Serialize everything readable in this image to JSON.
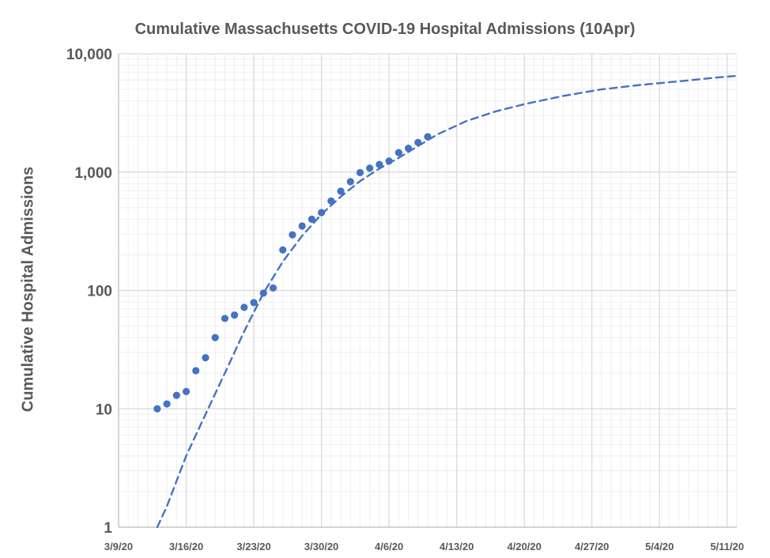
{
  "chart_data": {
    "type": "scatter",
    "title": "Cumulative Massachusetts COVID-19 Hospital Admissions (10Apr)",
    "xlabel": "",
    "ylabel": "Cumulative Hospital Admissions",
    "y_scale": "log",
    "ylim": [
      1,
      10000
    ],
    "xlim": [
      "2020-03-09",
      "2020-05-12"
    ],
    "y_tick_labels": [
      "1",
      "10",
      "100",
      "1,000",
      "10,000"
    ],
    "x_tick_labels": [
      "3/9/20",
      "3/16/20",
      "3/23/20",
      "3/30/20",
      "4/6/20",
      "4/13/20",
      "4/20/20",
      "4/27/20",
      "5/4/20",
      "5/11/20"
    ],
    "grid": true,
    "colors": {
      "series": "#4472c4",
      "grid_major": "#d9d9d9",
      "grid_minor": "#efefef",
      "text": "#595959"
    },
    "series": [
      {
        "style": "markers",
        "x": [
          "2020-03-13",
          "2020-03-14",
          "2020-03-15",
          "2020-03-16",
          "2020-03-17",
          "2020-03-18",
          "2020-03-19",
          "2020-03-20",
          "2020-03-21",
          "2020-03-22",
          "2020-03-23",
          "2020-03-24",
          "2020-03-25",
          "2020-03-26",
          "2020-03-27",
          "2020-03-28",
          "2020-03-29",
          "2020-03-30",
          "2020-03-31",
          "2020-04-01",
          "2020-04-02",
          "2020-04-03",
          "2020-04-04",
          "2020-04-05",
          "2020-04-06",
          "2020-04-07",
          "2020-04-08",
          "2020-04-09",
          "2020-04-10"
        ],
        "y": [
          10,
          11,
          13,
          14,
          21,
          27,
          40,
          58,
          62,
          72,
          79,
          95,
          105,
          220,
          295,
          350,
          400,
          455,
          570,
          690,
          830,
          990,
          1080,
          1160,
          1240,
          1460,
          1590,
          1780,
          1990
        ]
      },
      {
        "style": "dashed-fit",
        "x": [
          "2020-03-13",
          "2020-03-14",
          "2020-03-16",
          "2020-03-18",
          "2020-03-20",
          "2020-03-22",
          "2020-03-24",
          "2020-03-26",
          "2020-03-28",
          "2020-03-30",
          "2020-04-01",
          "2020-04-03",
          "2020-04-05",
          "2020-04-07",
          "2020-04-09",
          "2020-04-11",
          "2020-04-14",
          "2020-04-17",
          "2020-04-20",
          "2020-04-24",
          "2020-04-28",
          "2020-05-02",
          "2020-05-06",
          "2020-05-10",
          "2020-05-12"
        ],
        "y": [
          1,
          1.5,
          4,
          9,
          20,
          45,
          95,
          175,
          290,
          440,
          620,
          840,
          1070,
          1320,
          1660,
          2080,
          2700,
          3250,
          3750,
          4400,
          5000,
          5450,
          5850,
          6300,
          6500
        ]
      }
    ]
  }
}
